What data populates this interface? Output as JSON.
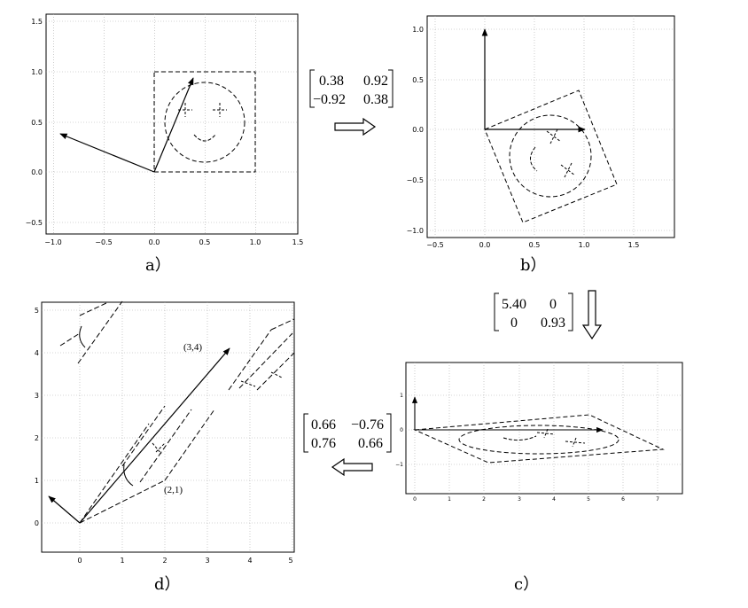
{
  "panels": [
    {
      "id": "a",
      "label": "a）",
      "x_ticks": [
        "−1.0",
        "−0.5",
        "0.0",
        "0.5",
        "1.0",
        "1.5"
      ],
      "y_ticks": [
        "−0.5",
        "0.0",
        "0.5",
        "1.0",
        "1.5"
      ]
    },
    {
      "id": "b",
      "label": "b）",
      "x_ticks": [
        "−0.5",
        "0.0",
        "0.5",
        "1.0",
        "1.5"
      ],
      "y_ticks": [
        "−1.0",
        "−0.5",
        "0.0",
        "0.5",
        "1.0"
      ]
    },
    {
      "id": "c",
      "label": "c）",
      "x_ticks": [
        "0",
        "1",
        "2",
        "3",
        "4",
        "5",
        "6",
        "7"
      ],
      "y_ticks": [
        "−1",
        "0",
        "1"
      ]
    },
    {
      "id": "d",
      "label": "d）",
      "x_ticks": [
        "0",
        "1",
        "2",
        "3",
        "4",
        "5"
      ],
      "y_ticks": [
        "0",
        "1",
        "2",
        "3",
        "4",
        "5"
      ]
    }
  ],
  "matrices": {
    "rotation": {
      "r1c1": "0.38",
      "r1c2": "0.92",
      "r2c1": "−0.92",
      "r2c2": "0.38"
    },
    "scaling": {
      "r1c1": "5.40",
      "r1c2": "0",
      "r2c1": "0",
      "r2c2": "0.93"
    },
    "rotation2": {
      "r1c1": "0.66",
      "r1c2": "−0.76",
      "r2c1": "0.76",
      "r2c2": "0.66"
    }
  },
  "annotations": {
    "vec_34": "(3,4)",
    "vec_21": "(2,1)"
  }
}
